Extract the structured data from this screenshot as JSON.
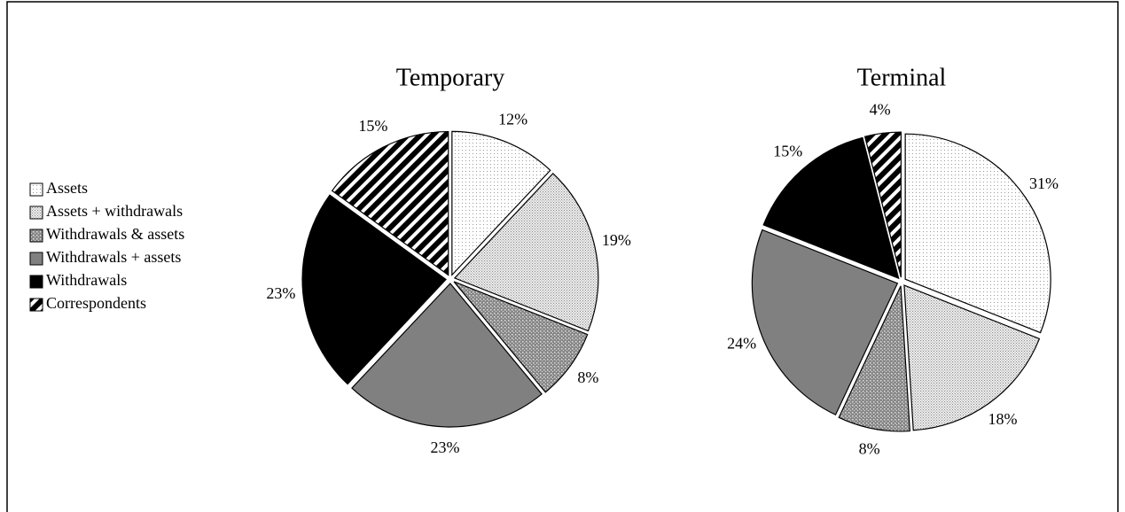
{
  "chart_data": [
    {
      "type": "pie",
      "title": "Temporary",
      "categories": [
        "Assets",
        "Assets + withdrawals",
        "Withdrawals & assets",
        "Withdrawals + assets",
        "Withdrawals",
        "Correspondents"
      ],
      "patterns": [
        "light-dots",
        "medium-dots",
        "dark-dots",
        "solid-gray",
        "solid-black",
        "diagonal-stripes"
      ],
      "values": [
        12,
        19,
        8,
        23,
        23,
        15
      ],
      "value_labels": [
        "12%",
        "19%",
        "8%",
        "23%",
        "23%",
        "15%"
      ]
    },
    {
      "type": "pie",
      "title": "Terminal",
      "values": [
        31,
        18,
        8,
        24,
        15,
        4
      ],
      "value_labels": [
        "31%",
        "18%",
        "8%",
        "24%",
        "15%",
        "4%"
      ]
    }
  ]
}
